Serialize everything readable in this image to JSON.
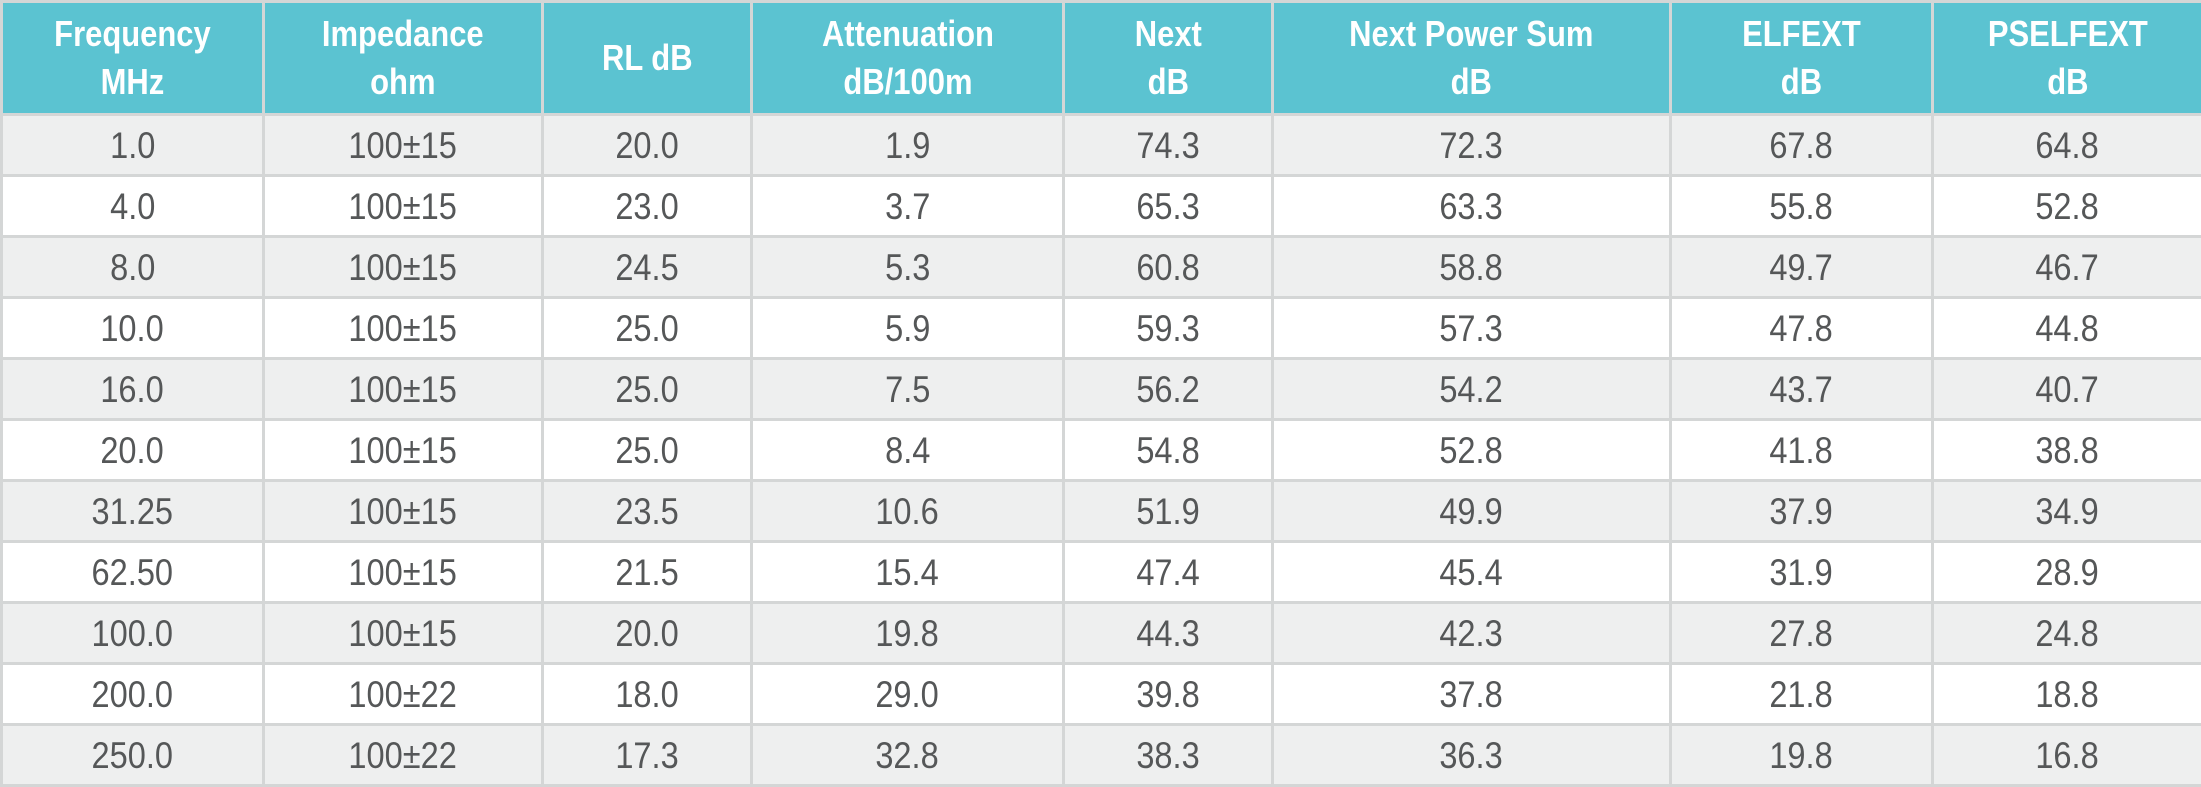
{
  "table": {
    "headers": [
      [
        "Frequency",
        "MHz"
      ],
      [
        "Impedance",
        "ohm"
      ],
      [
        "RL dB"
      ],
      [
        "Attenuation",
        "dB/100m"
      ],
      [
        "Next",
        "dB"
      ],
      [
        "Next Power Sum",
        "dB"
      ],
      [
        "ELFEXT",
        "dB"
      ],
      [
        "PSELFEXT",
        "dB"
      ]
    ],
    "rows": [
      [
        "1.0",
        "100±15",
        "20.0",
        "1.9",
        "74.3",
        "72.3",
        "67.8",
        "64.8"
      ],
      [
        "4.0",
        "100±15",
        "23.0",
        "3.7",
        "65.3",
        "63.3",
        "55.8",
        "52.8"
      ],
      [
        "8.0",
        "100±15",
        "24.5",
        "5.3",
        "60.8",
        "58.8",
        "49.7",
        "46.7"
      ],
      [
        "10.0",
        "100±15",
        "25.0",
        "5.9",
        "59.3",
        "57.3",
        "47.8",
        "44.8"
      ],
      [
        "16.0",
        "100±15",
        "25.0",
        "7.5",
        "56.2",
        "54.2",
        "43.7",
        "40.7"
      ],
      [
        "20.0",
        "100±15",
        "25.0",
        "8.4",
        "54.8",
        "52.8",
        "41.8",
        "38.8"
      ],
      [
        "31.25",
        "100±15",
        "23.5",
        "10.6",
        "51.9",
        "49.9",
        "37.9",
        "34.9"
      ],
      [
        "62.50",
        "100±15",
        "21.5",
        "15.4",
        "47.4",
        "45.4",
        "31.9",
        "28.9"
      ],
      [
        "100.0",
        "100±15",
        "20.0",
        "19.8",
        "44.3",
        "42.3",
        "27.8",
        "24.8"
      ],
      [
        "200.0",
        "100±22",
        "18.0",
        "29.0",
        "39.8",
        "37.8",
        "21.8",
        "18.8"
      ],
      [
        "250.0",
        "100±22",
        "17.3",
        "32.8",
        "38.3",
        "36.3",
        "19.8",
        "16.8"
      ]
    ]
  },
  "colors": {
    "header_bg": "#5bc3d1",
    "header_text": "#ffffff",
    "row_alt_bg": "#eeefef",
    "row_bg": "#ffffff",
    "body_text": "#555758",
    "grid_line": "#d4d6d6"
  }
}
